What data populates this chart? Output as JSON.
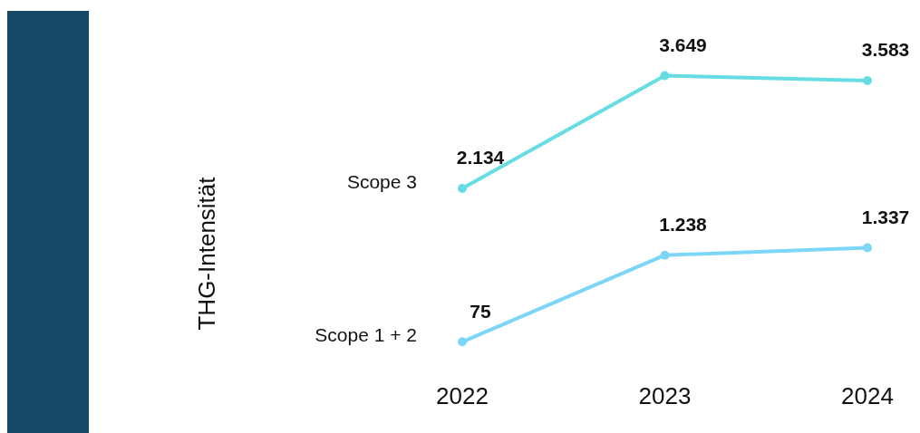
{
  "chart_data": {
    "type": "line",
    "annotations": [
      "THG-Intensität"
    ],
    "categories": [
      "2022",
      "2023",
      "2024"
    ],
    "marker": "circle",
    "legend": "left",
    "series": [
      {
        "name": "Scope 1 + 2",
        "color": "#7dd6f7",
        "values": [
          75,
          1238,
          1337
        ],
        "value_labels": [
          "75",
          "1.238",
          "1.337"
        ]
      },
      {
        "name": "Scope 3",
        "color": "#66dde3",
        "values": [
          2134,
          3649,
          3583
        ],
        "value_labels": [
          "2.134",
          "3.649",
          "3.583"
        ]
      }
    ]
  }
}
